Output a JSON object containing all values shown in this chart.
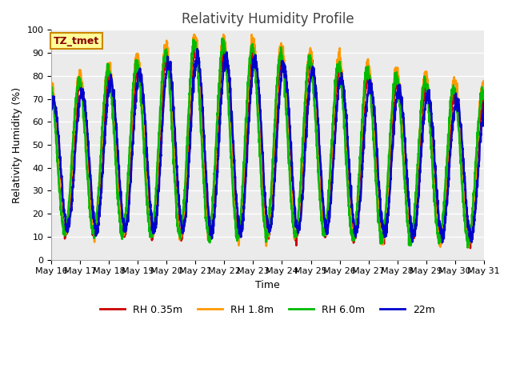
{
  "title": "Relativity Humidity Profile",
  "xlabel": "Time",
  "ylabel": "Relativity Humidity (%)",
  "ylim": [
    0,
    100
  ],
  "yticks": [
    0,
    10,
    20,
    30,
    40,
    50,
    60,
    70,
    80,
    90,
    100
  ],
  "plot_bg_color": "#ebebeb",
  "fig_bg_color": "#ffffff",
  "legend_label": "TZ_tmet",
  "series_colors": [
    "#cc0000",
    "#ff9900",
    "#00bb00",
    "#0000cc"
  ],
  "series_labels": [
    "RH 0.35m",
    "RH 1.8m",
    "RH 6.0m",
    "22m"
  ],
  "series_linewidths": [
    1.8,
    1.8,
    1.8,
    1.8
  ],
  "n_days": 15,
  "start_day": 16,
  "title_fontsize": 12,
  "tick_fontsize": 8,
  "axis_fontsize": 9
}
